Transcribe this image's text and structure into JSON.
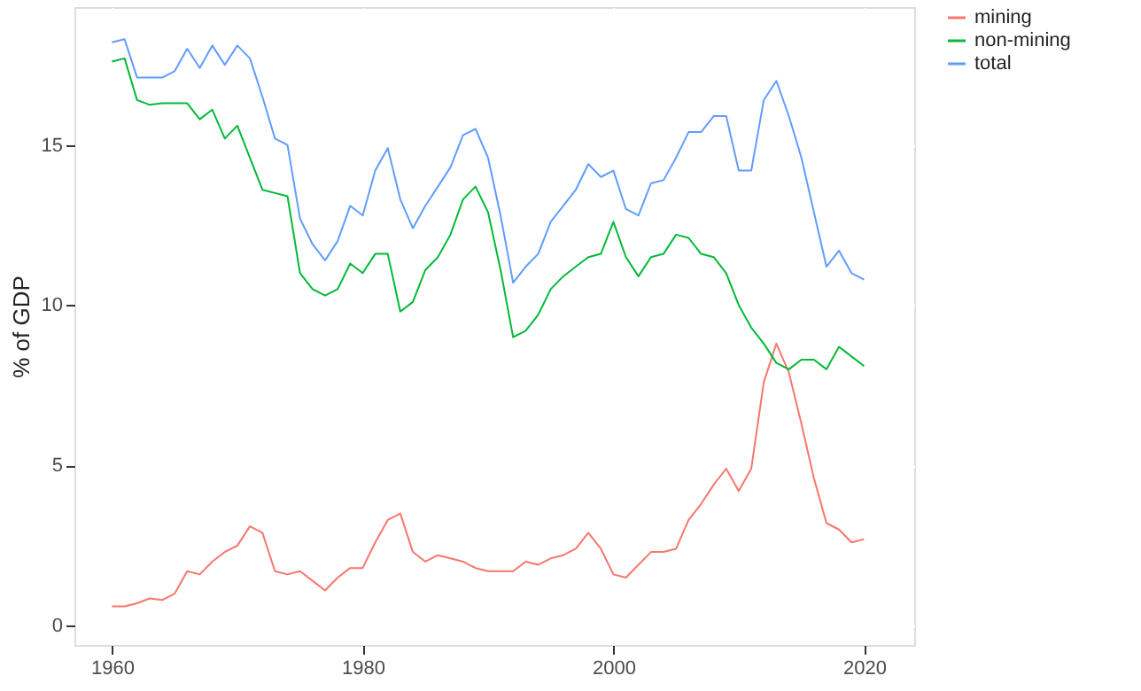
{
  "chart_data": {
    "type": "line",
    "ylabel": "% of GDP",
    "x": [
      1960,
      1961,
      1962,
      1963,
      1964,
      1965,
      1966,
      1967,
      1968,
      1969,
      1970,
      1971,
      1972,
      1973,
      1974,
      1975,
      1976,
      1977,
      1978,
      1979,
      1980,
      1981,
      1982,
      1983,
      1984,
      1985,
      1986,
      1987,
      1988,
      1989,
      1990,
      1991,
      1992,
      1993,
      1994,
      1995,
      1996,
      1997,
      1998,
      1999,
      2000,
      2001,
      2002,
      2003,
      2004,
      2005,
      2006,
      2007,
      2008,
      2009,
      2010,
      2011,
      2012,
      2013,
      2014,
      2015,
      2016,
      2017,
      2018,
      2019,
      2020
    ],
    "series": [
      {
        "name": "mining",
        "color": "#f8766d",
        "values": [
          0.6,
          0.6,
          0.7,
          0.85,
          0.8,
          1.0,
          1.7,
          1.6,
          2.0,
          2.3,
          2.5,
          3.1,
          2.9,
          1.7,
          1.6,
          1.7,
          1.4,
          1.1,
          1.5,
          1.8,
          1.8,
          2.6,
          3.3,
          3.5,
          2.3,
          2.0,
          2.2,
          2.1,
          2.0,
          1.8,
          1.7,
          1.7,
          1.7,
          2.0,
          1.9,
          2.1,
          2.2,
          2.4,
          2.9,
          2.4,
          1.6,
          1.5,
          1.9,
          2.3,
          2.3,
          2.4,
          3.3,
          3.8,
          4.4,
          4.9,
          4.2,
          4.9,
          7.6,
          8.8,
          7.9,
          6.3,
          4.6,
          3.2,
          3.0,
          2.6,
          2.7
        ]
      },
      {
        "name": "non-mining",
        "color": "#00ba38",
        "values": [
          17.6,
          17.7,
          16.4,
          16.25,
          16.3,
          16.3,
          16.3,
          15.8,
          16.1,
          15.2,
          15.6,
          14.6,
          13.6,
          13.5,
          13.4,
          11.0,
          10.5,
          10.3,
          10.5,
          11.3,
          11.0,
          11.6,
          11.6,
          9.8,
          10.1,
          11.1,
          11.5,
          12.2,
          13.3,
          13.7,
          12.9,
          11.1,
          9.0,
          9.2,
          9.7,
          10.5,
          10.9,
          11.2,
          11.5,
          11.6,
          12.6,
          11.5,
          10.9,
          11.5,
          11.6,
          12.2,
          12.1,
          11.6,
          11.5,
          11.0,
          10.0,
          9.3,
          8.8,
          8.2,
          8.0,
          8.3,
          8.3,
          8.0,
          8.7,
          8.4,
          8.1
        ]
      },
      {
        "name": "total",
        "color": "#619cff",
        "values": [
          18.2,
          18.3,
          17.1,
          17.1,
          17.1,
          17.3,
          18.0,
          17.4,
          18.1,
          17.5,
          18.1,
          17.7,
          16.5,
          15.2,
          15.0,
          12.7,
          11.9,
          11.4,
          12.0,
          13.1,
          12.8,
          14.2,
          14.9,
          13.3,
          12.4,
          13.1,
          13.7,
          14.3,
          15.3,
          15.5,
          14.6,
          12.8,
          10.7,
          11.2,
          11.6,
          12.6,
          13.1,
          13.6,
          14.4,
          14.0,
          14.2,
          13.0,
          12.8,
          13.8,
          13.9,
          14.6,
          15.4,
          15.4,
          15.9,
          15.9,
          14.2,
          14.2,
          16.4,
          17.0,
          15.9,
          14.6,
          12.9,
          11.2,
          11.7,
          11.0,
          10.8
        ]
      }
    ],
    "xlim": [
      1957,
      2024
    ],
    "xticks": [
      1960,
      1980,
      2000,
      2020
    ],
    "ylim": [
      -0.6,
      19.3
    ],
    "yticks": [
      0,
      5,
      10,
      15
    ],
    "grid": true,
    "legend": "right",
    "line_style": "solid",
    "marker": "none"
  }
}
